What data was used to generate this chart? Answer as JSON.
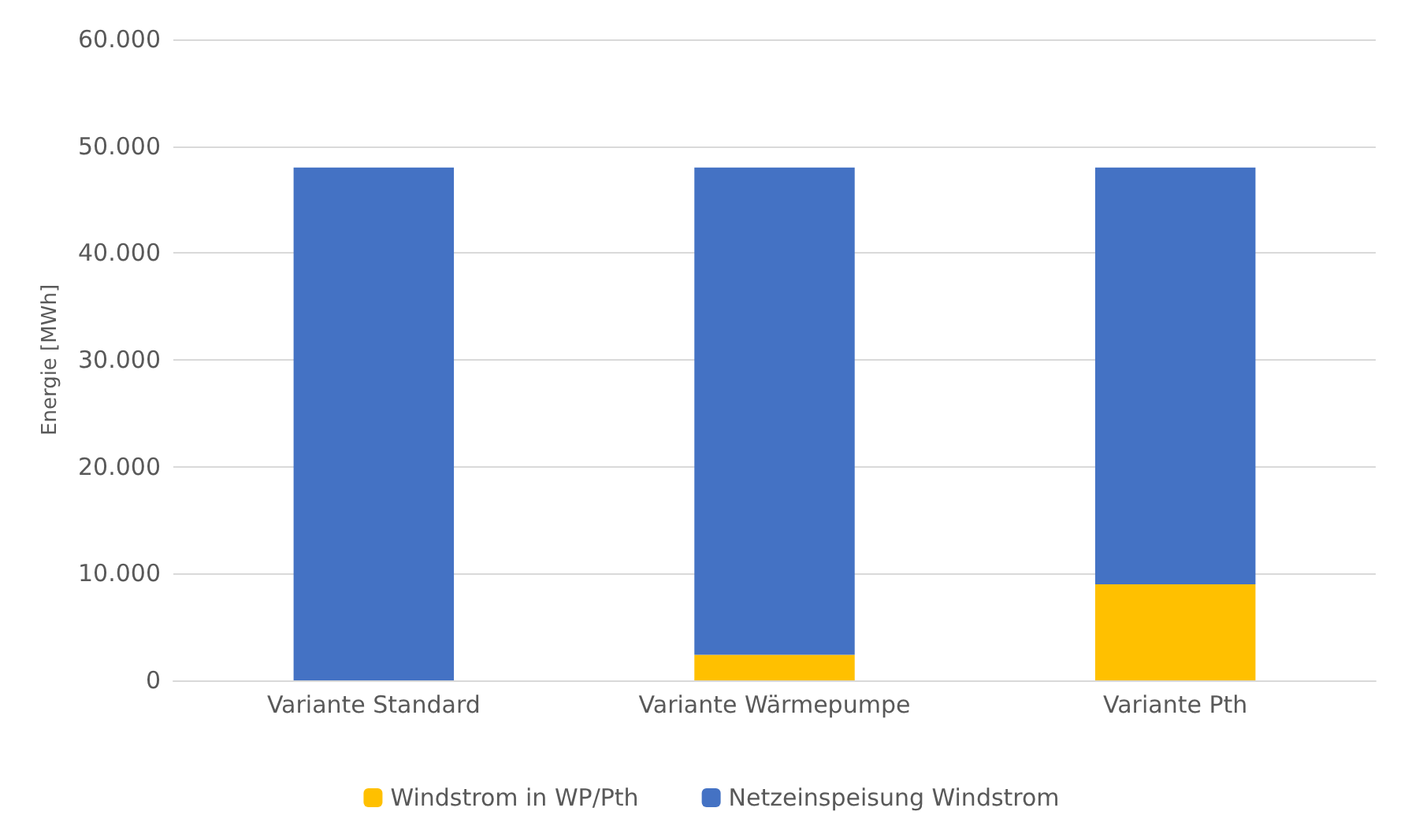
{
  "chart_data": {
    "type": "bar",
    "stacked": true,
    "ylabel": "Energie [MWh]",
    "categories": [
      "Variante Standard",
      "Variante Wärmepumpe",
      "Variante Pth"
    ],
    "series": [
      {
        "name": "Windstrom in WP/Pth",
        "color": "#ffc000",
        "values": [
          0,
          2400,
          9000
        ]
      },
      {
        "name": "Netzeinspeisung Windstrom",
        "color": "#4472c4",
        "values": [
          48000,
          45600,
          39000
        ]
      }
    ],
    "ylim": [
      0,
      60000
    ],
    "yticks": [
      0,
      {
        "value": 10000,
        "label": "10.000"
      },
      {
        "value": 20000,
        "label": "20.000"
      },
      {
        "value": 30000,
        "label": "30.000"
      },
      {
        "value": 40000,
        "label": "40.000"
      },
      {
        "value": 50000,
        "label": "50.000"
      },
      {
        "value": 60000,
        "label": "60.000"
      }
    ],
    "grid": "y",
    "legend": "bottom"
  }
}
